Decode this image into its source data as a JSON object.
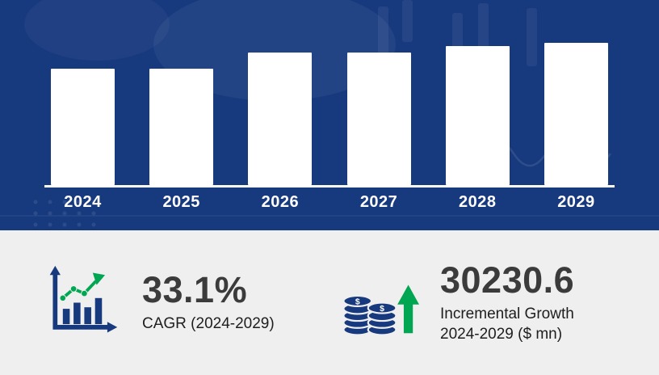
{
  "page": {
    "title": "Market growth infographic 2024-2029"
  },
  "chart_data": {
    "type": "bar",
    "title": "",
    "categories": [
      "2024",
      "2025",
      "2026",
      "2027",
      "2028",
      "2029"
    ],
    "values": [
      82,
      82,
      93,
      93,
      98,
      100
    ],
    "value_units": "relative bar height, percent of tallest bar (no numeric axis shown in image)",
    "xlabel": "",
    "ylabel": "",
    "ylim": [
      0,
      100
    ],
    "grid": false,
    "legend": false,
    "bar_color": "#ffffff",
    "background_color": "#17397e"
  },
  "stats": {
    "cagr": {
      "icon": "growth-line-chart-icon",
      "value": "33.1%",
      "label": "CAGR (2024-2029)"
    },
    "incremental_growth": {
      "icon": "coins-up-arrow-icon",
      "value": "30230.6",
      "label_line1": "Incremental Growth",
      "label_line2": "2024-2029 ($ mn)"
    }
  },
  "icons": {
    "coin_symbol": "$"
  },
  "colors": {
    "panel_blue": "#17397e",
    "bar_white": "#ffffff",
    "stats_background": "#efefef",
    "stat_text": "#3b3b3b",
    "accent_green": "#00a651"
  }
}
